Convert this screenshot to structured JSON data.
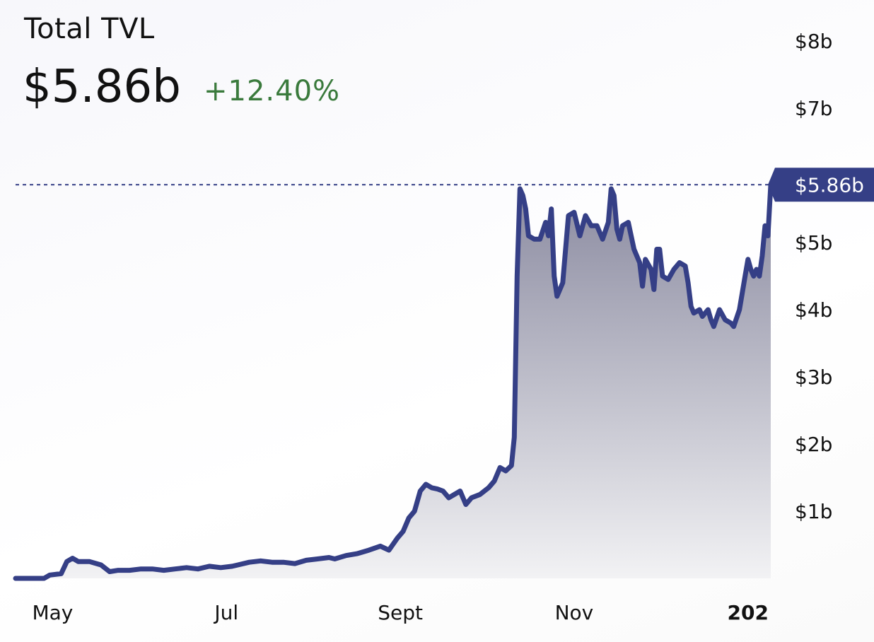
{
  "header": {
    "title": "Total TVL",
    "value": "$5.86b",
    "change": "+12.40%"
  },
  "colors": {
    "line": "#353f86",
    "change_positive": "#3a7a3c",
    "fill_top": "#8a8aa0",
    "fill_bottom": "#f2f2f4"
  },
  "chart_data": {
    "type": "area",
    "title": "Total TVL",
    "xlabel": "",
    "ylabel": "",
    "ylim": [
      0,
      8.4
    ],
    "y_ticks": [
      {
        "value": 1,
        "label": "$1b"
      },
      {
        "value": 2,
        "label": "$2b"
      },
      {
        "value": 3,
        "label": "$3b"
      },
      {
        "value": 4,
        "label": "$4b"
      },
      {
        "value": 5,
        "label": "$5b"
      },
      {
        "value": 7,
        "label": "$7b"
      },
      {
        "value": 8,
        "label": "$8b"
      }
    ],
    "x_ticks": [
      {
        "value": 13,
        "label": "May",
        "bold": false
      },
      {
        "value": 74,
        "label": "Jul",
        "bold": false
      },
      {
        "value": 135,
        "label": "Sept",
        "bold": false
      },
      {
        "value": 196,
        "label": "Nov",
        "bold": false
      },
      {
        "value": 257,
        "label": "202",
        "bold": true
      }
    ],
    "current": {
      "value": 5.86,
      "label": "$5.86b"
    },
    "series": [
      {
        "values": [
          [
            0,
            0.0
          ],
          [
            5,
            0.0
          ],
          [
            10,
            0.0
          ],
          [
            12,
            0.05
          ],
          [
            16,
            0.07
          ],
          [
            18,
            0.25
          ],
          [
            20,
            0.3
          ],
          [
            22,
            0.25
          ],
          [
            26,
            0.25
          ],
          [
            30,
            0.2
          ],
          [
            33,
            0.1
          ],
          [
            36,
            0.12
          ],
          [
            40,
            0.12
          ],
          [
            44,
            0.14
          ],
          [
            48,
            0.14
          ],
          [
            52,
            0.12
          ],
          [
            56,
            0.14
          ],
          [
            60,
            0.16
          ],
          [
            64,
            0.14
          ],
          [
            68,
            0.18
          ],
          [
            72,
            0.16
          ],
          [
            76,
            0.18
          ],
          [
            78,
            0.2
          ],
          [
            82,
            0.24
          ],
          [
            86,
            0.26
          ],
          [
            90,
            0.24
          ],
          [
            94,
            0.24
          ],
          [
            98,
            0.22
          ],
          [
            102,
            0.27
          ],
          [
            106,
            0.29
          ],
          [
            110,
            0.31
          ],
          [
            112,
            0.29
          ],
          [
            116,
            0.34
          ],
          [
            120,
            0.37
          ],
          [
            124,
            0.42
          ],
          [
            128,
            0.48
          ],
          [
            131,
            0.42
          ],
          [
            134,
            0.6
          ],
          [
            136,
            0.7
          ],
          [
            138,
            0.9
          ],
          [
            140,
            1.0
          ],
          [
            142,
            1.3
          ],
          [
            144,
            1.4
          ],
          [
            146,
            1.35
          ],
          [
            148,
            1.33
          ],
          [
            150,
            1.3
          ],
          [
            152,
            1.2
          ],
          [
            154,
            1.25
          ],
          [
            156,
            1.3
          ],
          [
            158,
            1.1
          ],
          [
            160,
            1.2
          ],
          [
            163,
            1.25
          ],
          [
            166,
            1.35
          ],
          [
            168,
            1.45
          ],
          [
            170,
            1.65
          ],
          [
            172,
            1.6
          ],
          [
            174,
            1.68
          ],
          [
            175,
            2.1
          ],
          [
            176,
            4.5
          ],
          [
            177,
            5.8
          ],
          [
            178,
            5.7
          ],
          [
            179,
            5.5
          ],
          [
            180,
            5.1
          ],
          [
            182,
            5.05
          ],
          [
            184,
            5.05
          ],
          [
            186,
            5.3
          ],
          [
            187,
            5.1
          ],
          [
            188,
            5.5
          ],
          [
            189,
            4.5
          ],
          [
            190,
            4.2
          ],
          [
            192,
            4.4
          ],
          [
            194,
            5.4
          ],
          [
            196,
            5.45
          ],
          [
            198,
            5.1
          ],
          [
            200,
            5.4
          ],
          [
            202,
            5.25
          ],
          [
            204,
            5.25
          ],
          [
            206,
            5.05
          ],
          [
            208,
            5.3
          ],
          [
            209,
            5.8
          ],
          [
            210,
            5.7
          ],
          [
            211,
            5.2
          ],
          [
            212,
            5.05
          ],
          [
            213,
            5.25
          ],
          [
            215,
            5.3
          ],
          [
            217,
            4.9
          ],
          [
            219,
            4.7
          ],
          [
            220,
            4.35
          ],
          [
            221,
            4.75
          ],
          [
            223,
            4.6
          ],
          [
            224,
            4.3
          ],
          [
            225,
            4.9
          ],
          [
            226,
            4.9
          ],
          [
            227,
            4.5
          ],
          [
            229,
            4.45
          ],
          [
            231,
            4.6
          ],
          [
            233,
            4.7
          ],
          [
            235,
            4.65
          ],
          [
            236,
            4.4
          ],
          [
            237,
            4.05
          ],
          [
            238,
            3.95
          ],
          [
            240,
            4.0
          ],
          [
            241,
            3.9
          ],
          [
            243,
            4.0
          ],
          [
            244,
            3.85
          ],
          [
            245,
            3.75
          ],
          [
            247,
            4.0
          ],
          [
            249,
            3.85
          ],
          [
            251,
            3.8
          ],
          [
            252,
            3.75
          ],
          [
            254,
            4.0
          ],
          [
            256,
            4.5
          ],
          [
            257,
            4.75
          ],
          [
            258,
            4.6
          ],
          [
            259,
            4.5
          ],
          [
            260,
            4.6
          ],
          [
            261,
            4.5
          ],
          [
            262,
            4.8
          ],
          [
            263,
            5.25
          ],
          [
            264,
            5.1
          ],
          [
            265,
            5.86
          ]
        ]
      }
    ],
    "grid": false,
    "legend": "none"
  }
}
